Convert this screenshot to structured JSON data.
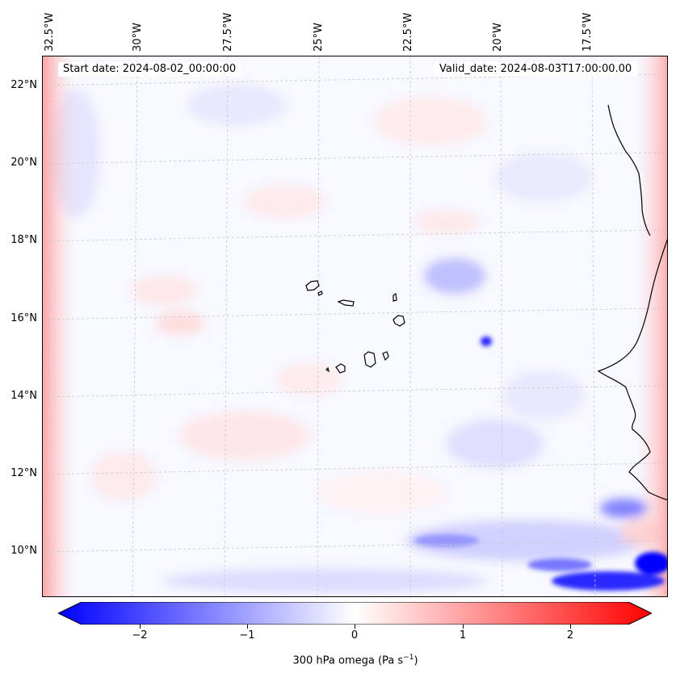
{
  "map": {
    "start_date_label": "Start date: 2024-08-02_00:00:00",
    "valid_date_label": "Valid_date: 2024-08-03T17:00:00.00",
    "longitude_labels": [
      "32.5°W",
      "30°W",
      "27.5°W",
      "25°W",
      "22.5°W",
      "20°W",
      "17.5°W"
    ],
    "latitude_labels": [
      "22°N",
      "20°N",
      "18°N",
      "16°N",
      "14°N",
      "12°N",
      "10°N"
    ],
    "field": "300 hPa omega",
    "coastline_color": "#000000",
    "gridline_color": "#c8c8c8"
  },
  "colorbar": {
    "label_main": "300 hPa omega (Pa s",
    "label_exp": "−1",
    "label_close": ")",
    "range": [
      -2.75,
      2.75
    ],
    "ticks": [
      "−2",
      "−1",
      "0",
      "1",
      "2"
    ],
    "tick_values": [
      -2,
      -1,
      0,
      1,
      2
    ],
    "cmap": "bwr",
    "color_min": "#0000ff",
    "color_mid": "#ffffff",
    "color_max": "#ff0000"
  }
}
